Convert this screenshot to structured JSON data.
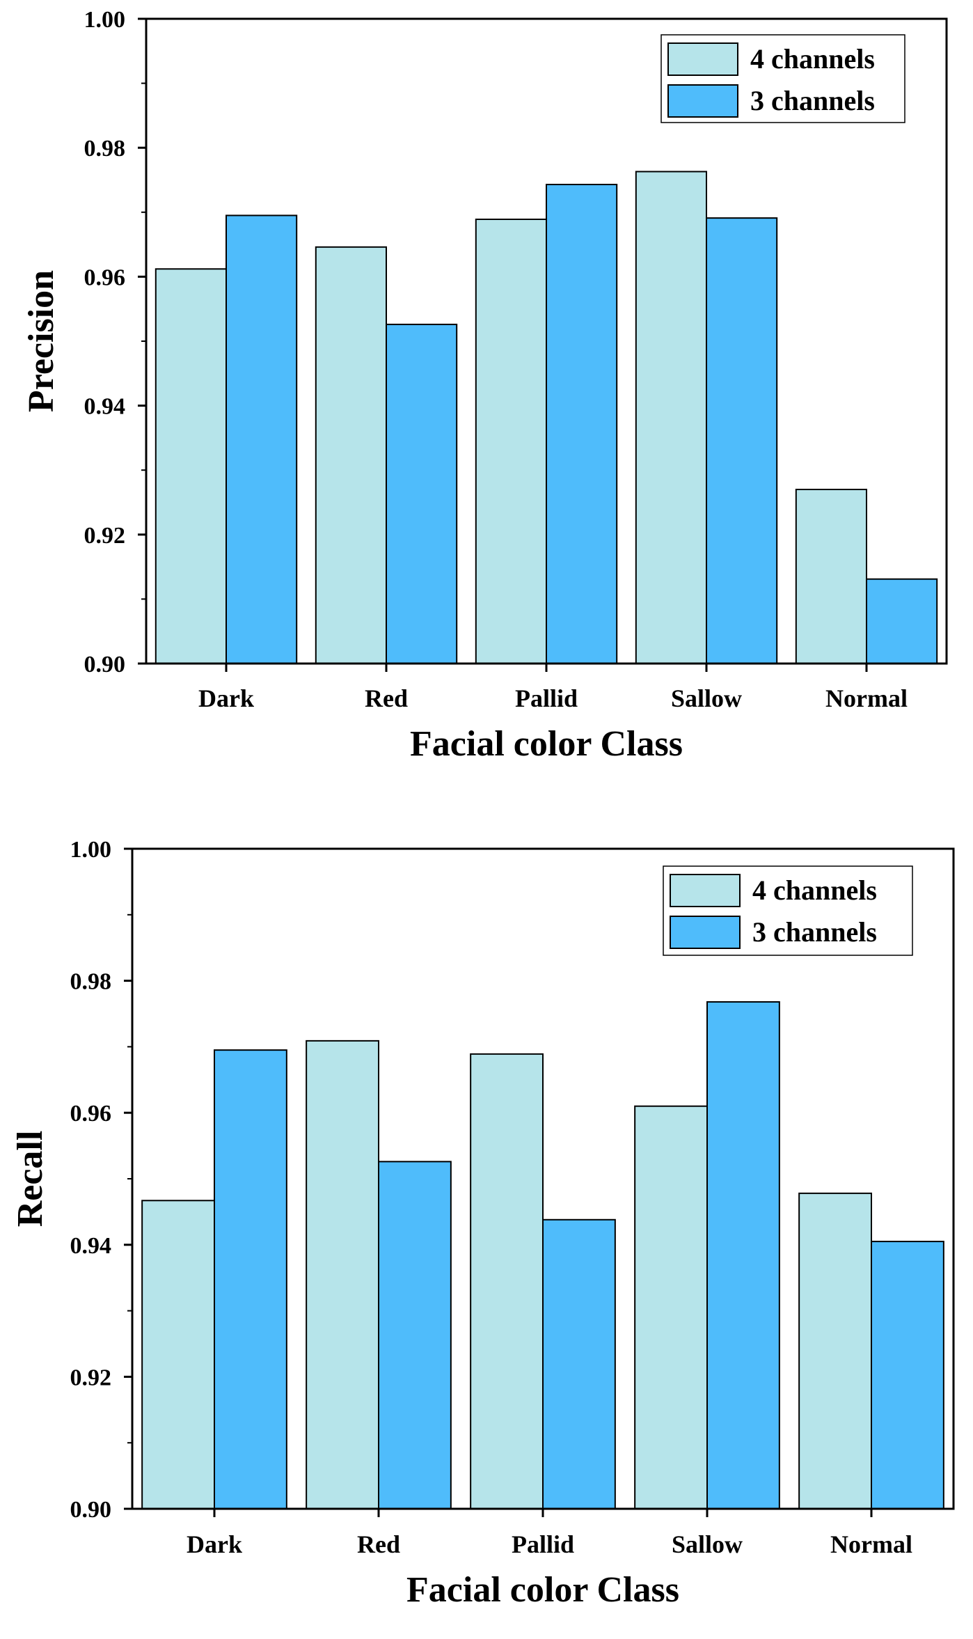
{
  "chart_data": [
    {
      "type": "bar",
      "title": "",
      "xlabel": "Facial color Class",
      "ylabel": "Precision",
      "categories": [
        "Dark",
        "Red",
        "Pallid",
        "Sallow",
        "Normal"
      ],
      "ylim": [
        0.9,
        1.0
      ],
      "yticks": [
        "0.90",
        "0.92",
        "0.94",
        "0.96",
        "0.98",
        "1.00"
      ],
      "yticks_values": [
        0.9,
        0.92,
        0.94,
        0.96,
        0.98,
        1.0
      ],
      "grid": false,
      "legend_position": "top-right",
      "series": [
        {
          "name": "4 channels",
          "color": "#b6e4ea",
          "values": [
            0.9612,
            0.9646,
            0.9689,
            0.9763,
            0.927
          ]
        },
        {
          "name": "3 channels",
          "color": "#4fbcfb",
          "values": [
            0.9695,
            0.9526,
            0.9743,
            0.9691,
            0.9131
          ]
        }
      ]
    },
    {
      "type": "bar",
      "title": "",
      "xlabel": "Facial color Class",
      "ylabel": "Recall",
      "categories": [
        "Dark",
        "Red",
        "Pallid",
        "Sallow",
        "Normal"
      ],
      "ylim": [
        0.9,
        1.0
      ],
      "yticks": [
        "0.90",
        "0.92",
        "0.94",
        "0.96",
        "0.98",
        "1.00"
      ],
      "yticks_values": [
        0.9,
        0.92,
        0.94,
        0.96,
        0.98,
        1.0
      ],
      "grid": false,
      "legend_position": "top-right",
      "series": [
        {
          "name": "4 channels",
          "color": "#b6e4ea",
          "values": [
            0.9467,
            0.9709,
            0.9689,
            0.961,
            0.9478
          ]
        },
        {
          "name": "3 channels",
          "color": "#4fbcfb",
          "values": [
            0.9695,
            0.9526,
            0.9438,
            0.9768,
            0.9405
          ]
        }
      ]
    }
  ]
}
